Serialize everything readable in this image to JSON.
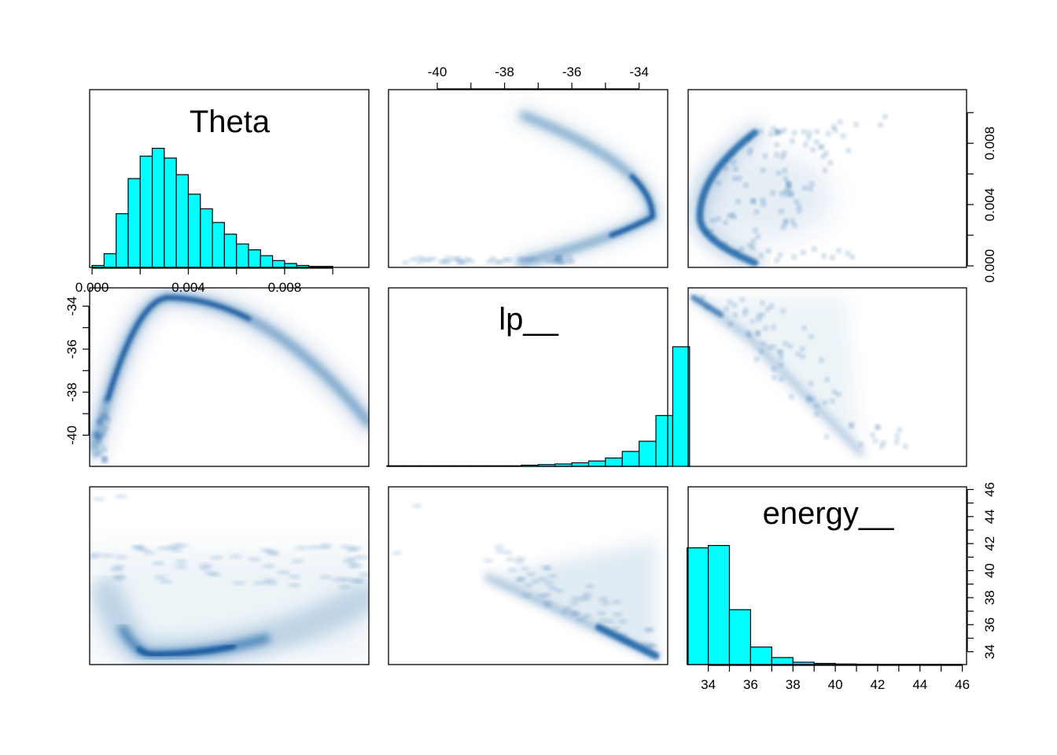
{
  "chart_data": {
    "type": "pairs",
    "variables": [
      "Theta",
      "lp__",
      "energy__"
    ],
    "colors": {
      "hist_fill": "#00FFFF",
      "density": "#08519C",
      "frame": "#000000"
    },
    "axes": {
      "theta": {
        "range": [
          -0.0001,
          0.0115
        ],
        "ticks": [
          0.0,
          0.002,
          0.004,
          0.006,
          0.008,
          0.01
        ],
        "tick_labels": [
          "0.000",
          "",
          "0.004",
          "",
          "0.008",
          ""
        ]
      },
      "lp": {
        "range": [
          -41.45,
          -33.15
        ],
        "ticks": [
          -40,
          -39,
          -38,
          -37,
          -36,
          -35,
          -34
        ],
        "tick_labels": [
          "-40",
          "",
          "-38",
          "",
          "-36",
          "",
          "-34"
        ]
      },
      "energy": {
        "range": [
          33.05,
          46.2
        ],
        "ticks": [
          34,
          35,
          36,
          37,
          38,
          39,
          40,
          41,
          42,
          43,
          44,
          45,
          46
        ],
        "tick_labels": [
          "34",
          "",
          "36",
          "",
          "38",
          "",
          "40",
          "",
          "42",
          "",
          "44",
          "",
          "46"
        ]
      }
    },
    "tick_axes": [
      {
        "panel": "0-0",
        "side": "bottom",
        "var": "theta",
        "labels": [
          "0.000",
          "0.004",
          "0.008"
        ]
      },
      {
        "panel": "0-1",
        "side": "top",
        "var": "lp",
        "labels": [
          "-40",
          "-38",
          "-36",
          "-34"
        ]
      },
      {
        "panel": "1-0",
        "side": "left",
        "var": "lp",
        "labels": [
          "-40",
          "-38",
          "-36",
          "-34"
        ]
      },
      {
        "panel": "2-2",
        "side": "right",
        "var": "energy",
        "labels": [
          "34",
          "38",
          "42",
          "46"
        ]
      },
      {
        "panel": "0-2",
        "side": "right",
        "var": "theta",
        "labels": [
          "0.000",
          "0.004",
          "0.008"
        ]
      },
      {
        "panel": "2-2",
        "side": "bottom",
        "var": "energy",
        "labels": [
          "34",
          "36",
          "38",
          "40",
          "42",
          "44",
          "46"
        ]
      }
    ],
    "histograms": {
      "theta": {
        "bin_start": 0.0,
        "bin_width": 0.0005,
        "counts": [
          2,
          14,
          55,
          91,
          114,
          122,
          112,
          95,
          75,
          60,
          46,
          34,
          24,
          18,
          12,
          7,
          4,
          2,
          1,
          1,
          0,
          0,
          0
        ]
      },
      "lp": {
        "bin_start": -41.5,
        "bin_width": 0.5,
        "counts": [
          1,
          1,
          1,
          1,
          1,
          1,
          1,
          1,
          2,
          3,
          4,
          6,
          9,
          14,
          25,
          42,
          85,
          200
        ]
      },
      "energy": {
        "bin_start": 33.0,
        "bin_width": 1.0,
        "counts": [
          100,
          102,
          47,
          15,
          6,
          2,
          1,
          0.5,
          0.3,
          0.2,
          0.2,
          0.2,
          0.1
        ]
      }
    }
  }
}
